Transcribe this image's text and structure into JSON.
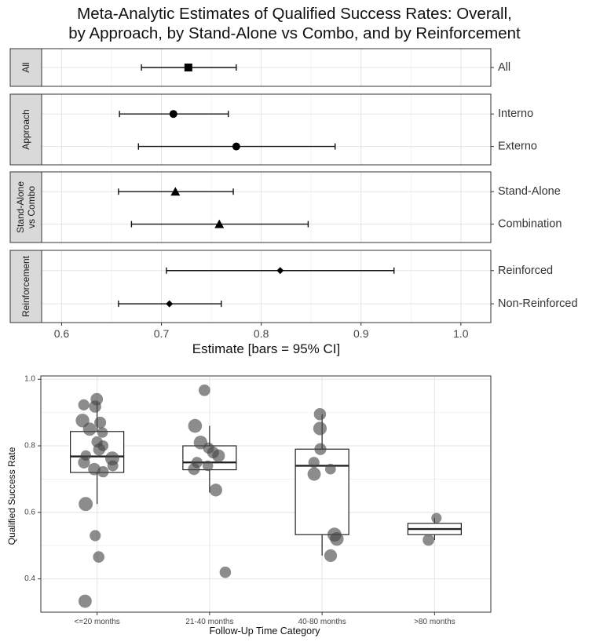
{
  "chart_data": [
    {
      "type": "forest",
      "title_line1": "Meta-Analytic Estimates of Qualified Success Rates: Overall,",
      "title_line2": "by Approach, by Stand-Alone vs Combo, and by Reinforcement",
      "xlabel": "Estimate [bars = 95% CI]",
      "xlim": [
        0.58,
        1.03
      ],
      "xticks": [
        0.6,
        0.7,
        0.8,
        0.9,
        1.0
      ],
      "xtick_labels": [
        "0.6",
        "0.7",
        "0.8",
        "0.9",
        "1.0"
      ],
      "grid": true,
      "facets": [
        {
          "strip": "All",
          "strip_lines": [
            "All"
          ],
          "marker": "square",
          "rows": [
            {
              "label": "All",
              "estimate": 0.727,
              "lower": 0.68,
              "upper": 0.775
            }
          ]
        },
        {
          "strip": "Approach",
          "strip_lines": [
            "Approach"
          ],
          "marker": "circle",
          "rows": [
            {
              "label": "Interno",
              "estimate": 0.712,
              "lower": 0.658,
              "upper": 0.767
            },
            {
              "label": "Externo",
              "estimate": 0.775,
              "lower": 0.677,
              "upper": 0.874
            }
          ]
        },
        {
          "strip": "Stand-Alone vs Combo",
          "strip_lines": [
            "Stand-Alone",
            "vs Combo"
          ],
          "marker": "triangle",
          "rows": [
            {
              "label": "Stand-Alone",
              "estimate": 0.714,
              "lower": 0.657,
              "upper": 0.772
            },
            {
              "label": "Combination",
              "estimate": 0.758,
              "lower": 0.67,
              "upper": 0.847
            }
          ]
        },
        {
          "strip": "Reinforcement",
          "strip_lines": [
            "Reinforcement"
          ],
          "marker": "diamond",
          "rows": [
            {
              "label": "Reinforced",
              "estimate": 0.819,
              "lower": 0.705,
              "upper": 0.933
            },
            {
              "label": "Non-Reinforced",
              "estimate": 0.708,
              "lower": 0.657,
              "upper": 0.76
            }
          ]
        }
      ]
    },
    {
      "type": "box",
      "xlabel": "Follow-Up Time Category",
      "ylabel": "Qualified Success Rate",
      "ylim": [
        0.3,
        1.01
      ],
      "yticks": [
        0.4,
        0.6,
        0.8,
        1.0
      ],
      "ytick_labels": [
        "0.4",
        "0.6",
        "0.8",
        "1.0"
      ],
      "categories": [
        "<=20 months",
        "21-40 months",
        "40-80 months",
        ">80 months"
      ],
      "boxes": [
        {
          "category": "<=20 months",
          "q1": 0.72,
          "median": 0.768,
          "q3": 0.843,
          "whisker_low": 0.625,
          "whisker_high": 0.93
        },
        {
          "category": "21-40 months",
          "q1": 0.728,
          "median": 0.75,
          "q3": 0.8,
          "whisker_low": 0.66,
          "whisker_high": 0.86
        },
        {
          "category": "40-80 months",
          "q1": 0.533,
          "median": 0.74,
          "q3": 0.79,
          "whisker_low": 0.47,
          "whisker_high": 0.895
        },
        {
          "category": ">80 months",
          "q1": 0.533,
          "median": 0.55,
          "q3": 0.567,
          "whisker_low": 0.517,
          "whisker_high": 0.583
        }
      ],
      "points": [
        {
          "category": "<=20 months",
          "values": [
            0.94,
            0.923,
            0.918,
            0.876,
            0.87,
            0.85,
            0.84,
            0.812,
            0.8,
            0.789,
            0.771,
            0.762,
            0.75,
            0.74,
            0.73,
            0.722,
            0.625,
            0.53,
            0.466,
            0.333
          ]
        },
        {
          "category": "21-40 months",
          "values": [
            0.967,
            0.86,
            0.81,
            0.793,
            0.78,
            0.77,
            0.75,
            0.74,
            0.73,
            0.667,
            0.42
          ]
        },
        {
          "category": "40-80 months",
          "values": [
            0.895,
            0.852,
            0.79,
            0.75,
            0.73,
            0.715,
            0.533,
            0.52,
            0.47
          ]
        },
        {
          "category": ">80 months",
          "values": [
            0.583,
            0.517
          ]
        }
      ]
    }
  ]
}
